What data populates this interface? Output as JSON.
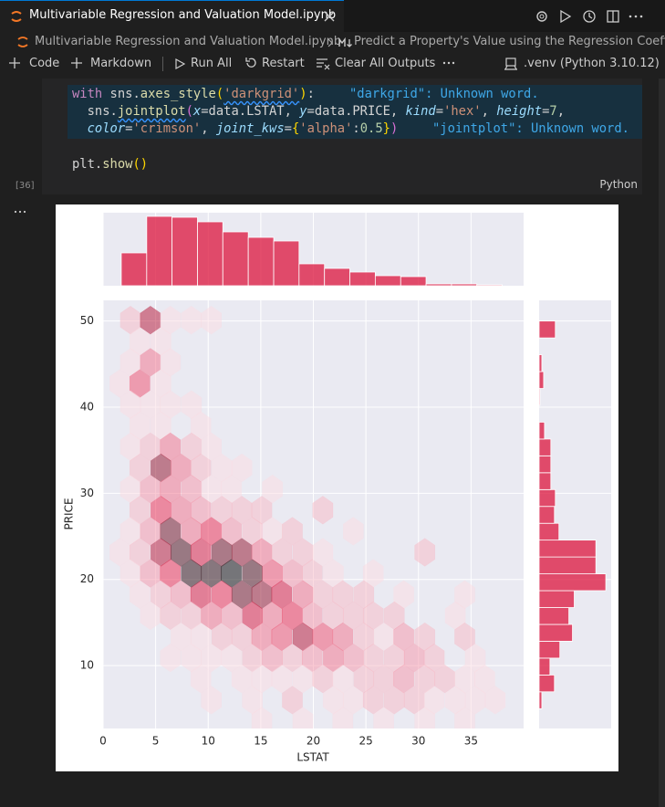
{
  "tab": {
    "title": "Multivariable Regression and Valuation Model.ipynb"
  },
  "breadcrumb": {
    "file": "Multivariable Regression and Valuation Model.ipynb",
    "section": "Predict a Property's Value using the Regression Coeffic"
  },
  "toolbar": {
    "items": [
      "Code",
      "Markdown",
      "Run All",
      "Restart",
      "Clear All Outputs"
    ],
    "kernel": ".venv (Python 3.10.12)"
  },
  "cell": {
    "lines": [
      [
        "with",
        " sns.",
        "axes_style",
        "(",
        "'darkgrid'",
        ")",
        ":"
      ],
      [
        "  sns.",
        "jointplot",
        "(",
        "x",
        "=data.LSTAT, ",
        "y",
        "=data.PRICE, ",
        "kind",
        "=",
        "'hex'",
        ", ",
        "height",
        "=",
        "7",
        ","
      ],
      [
        "  ",
        "color",
        "=",
        "'crimson'",
        ", ",
        "joint_kws",
        "=",
        "{",
        "'alpha'",
        ":",
        "0.5",
        "}",
        ")"
      ],
      [
        "plt.",
        "show",
        "(",
        ")"
      ]
    ],
    "hints": [
      "\"darkgrid\": Unknown word.",
      "\"jointplot\": Unknown word."
    ],
    "execution_count": "[36]",
    "language": "Python"
  },
  "chart_data": {
    "type": "hexbin",
    "xlabel": "LSTAT",
    "ylabel": "PRICE",
    "xlim": [
      0,
      40
    ],
    "ylim": [
      2.7,
      52.4
    ],
    "xticks": [
      0,
      5,
      10,
      15,
      20,
      25,
      30,
      35
    ],
    "yticks": [
      10,
      20,
      30,
      40,
      50
    ],
    "grid": true,
    "color": "#dc143c",
    "alpha": 0.5,
    "cells": [
      [
        2.6,
        50.1,
        2
      ],
      [
        4.5,
        50.1,
        8
      ],
      [
        6.4,
        50.1,
        1
      ],
      [
        8.4,
        50.1,
        1
      ],
      [
        10.3,
        50.1,
        1
      ],
      [
        3.5,
        47.65,
        1
      ],
      [
        5.5,
        47.65,
        1
      ],
      [
        2.6,
        45.2,
        1
      ],
      [
        4.5,
        45.2,
        4
      ],
      [
        6.4,
        45.2,
        1
      ],
      [
        1.6,
        42.75,
        1
      ],
      [
        3.5,
        42.75,
        5
      ],
      [
        5.5,
        42.75,
        1
      ],
      [
        2.6,
        40.3,
        1
      ],
      [
        4.5,
        40.3,
        1
      ],
      [
        6.4,
        40.3,
        1
      ],
      [
        8.4,
        40.3,
        1
      ],
      [
        3.5,
        37.85,
        1
      ],
      [
        5.5,
        37.85,
        1
      ],
      [
        9.3,
        37.85,
        1
      ],
      [
        2.6,
        35.4,
        1
      ],
      [
        4.5,
        35.4,
        2
      ],
      [
        6.4,
        35.4,
        4
      ],
      [
        8.4,
        35.4,
        2
      ],
      [
        10.3,
        35.4,
        1
      ],
      [
        3.5,
        32.95,
        2
      ],
      [
        5.5,
        32.95,
        9
      ],
      [
        7.4,
        32.95,
        4
      ],
      [
        9.3,
        32.95,
        2
      ],
      [
        11.3,
        32.95,
        1
      ],
      [
        13.2,
        32.95,
        1
      ],
      [
        2.6,
        30.5,
        1
      ],
      [
        4.5,
        30.5,
        3
      ],
      [
        6.4,
        30.5,
        4
      ],
      [
        8.4,
        30.5,
        3
      ],
      [
        10.3,
        30.5,
        1
      ],
      [
        12.2,
        30.5,
        1
      ],
      [
        16.1,
        30.5,
        1
      ],
      [
        3.5,
        28.05,
        2
      ],
      [
        5.5,
        28.05,
        6
      ],
      [
        7.4,
        28.05,
        4
      ],
      [
        9.3,
        28.05,
        3
      ],
      [
        11.3,
        28.05,
        2
      ],
      [
        13.2,
        28.05,
        2
      ],
      [
        15.1,
        28.05,
        2
      ],
      [
        20.9,
        28.05,
        2
      ],
      [
        2.6,
        25.6,
        1
      ],
      [
        4.5,
        25.6,
        3
      ],
      [
        6.4,
        25.6,
        10
      ],
      [
        8.4,
        25.6,
        4
      ],
      [
        10.3,
        25.6,
        6
      ],
      [
        12.2,
        25.6,
        3
      ],
      [
        14.2,
        25.6,
        2
      ],
      [
        16.1,
        25.6,
        1
      ],
      [
        18.0,
        25.6,
        2
      ],
      [
        23.8,
        25.6,
        1
      ],
      [
        1.6,
        23.15,
        1
      ],
      [
        3.5,
        23.15,
        2
      ],
      [
        5.5,
        23.15,
        8
      ],
      [
        7.4,
        23.15,
        11
      ],
      [
        9.3,
        23.15,
        7
      ],
      [
        11.3,
        23.15,
        10
      ],
      [
        13.2,
        23.15,
        9
      ],
      [
        15.1,
        23.15,
        4
      ],
      [
        17.0,
        23.15,
        2
      ],
      [
        19.0,
        23.15,
        2
      ],
      [
        20.9,
        23.15,
        1
      ],
      [
        30.6,
        23.15,
        2
      ],
      [
        2.6,
        20.7,
        1
      ],
      [
        4.5,
        20.7,
        3
      ],
      [
        6.4,
        20.7,
        6
      ],
      [
        8.4,
        20.7,
        12
      ],
      [
        10.3,
        20.7,
        12
      ],
      [
        12.2,
        20.7,
        13
      ],
      [
        14.2,
        20.7,
        11
      ],
      [
        16.1,
        20.7,
        5
      ],
      [
        18.0,
        20.7,
        3
      ],
      [
        19.9,
        20.7,
        2
      ],
      [
        21.9,
        20.7,
        1
      ],
      [
        25.7,
        20.7,
        1
      ],
      [
        3.5,
        18.25,
        1
      ],
      [
        5.5,
        18.25,
        2
      ],
      [
        7.4,
        18.25,
        3
      ],
      [
        9.3,
        18.25,
        7
      ],
      [
        11.3,
        18.25,
        6
      ],
      [
        13.2,
        18.25,
        10
      ],
      [
        15.1,
        18.25,
        9
      ],
      [
        17.0,
        18.25,
        7
      ],
      [
        19.0,
        18.25,
        4
      ],
      [
        20.9,
        18.25,
        2
      ],
      [
        22.8,
        18.25,
        2
      ],
      [
        24.8,
        18.25,
        2
      ],
      [
        28.6,
        18.25,
        1
      ],
      [
        34.4,
        18.25,
        1
      ],
      [
        4.5,
        15.8,
        1
      ],
      [
        6.4,
        15.8,
        2
      ],
      [
        8.4,
        15.8,
        2
      ],
      [
        10.3,
        15.8,
        4
      ],
      [
        12.2,
        15.8,
        3
      ],
      [
        14.2,
        15.8,
        7
      ],
      [
        16.1,
        15.8,
        4
      ],
      [
        18.0,
        15.8,
        6
      ],
      [
        19.9,
        15.8,
        3
      ],
      [
        21.9,
        15.8,
        2
      ],
      [
        23.8,
        15.8,
        2
      ],
      [
        25.7,
        15.8,
        2
      ],
      [
        27.7,
        15.8,
        2
      ],
      [
        33.5,
        15.8,
        1
      ],
      [
        7.4,
        13.35,
        1
      ],
      [
        9.3,
        13.35,
        1
      ],
      [
        11.3,
        13.35,
        2
      ],
      [
        13.2,
        13.35,
        2
      ],
      [
        15.1,
        13.35,
        4
      ],
      [
        17.0,
        13.35,
        5
      ],
      [
        19.0,
        13.35,
        8
      ],
      [
        20.9,
        13.35,
        5
      ],
      [
        22.8,
        13.35,
        4
      ],
      [
        24.8,
        13.35,
        2
      ],
      [
        26.7,
        13.35,
        1
      ],
      [
        28.6,
        13.35,
        3
      ],
      [
        30.6,
        13.35,
        2
      ],
      [
        34.4,
        13.35,
        2
      ],
      [
        6.4,
        10.9,
        1
      ],
      [
        8.4,
        10.9,
        1
      ],
      [
        10.3,
        10.9,
        1
      ],
      [
        12.2,
        10.9,
        1
      ],
      [
        14.2,
        10.9,
        2
      ],
      [
        16.1,
        10.9,
        3
      ],
      [
        18.0,
        10.9,
        2
      ],
      [
        19.9,
        10.9,
        3
      ],
      [
        21.9,
        10.9,
        4
      ],
      [
        23.8,
        10.9,
        3
      ],
      [
        25.7,
        10.9,
        2
      ],
      [
        27.7,
        10.9,
        2
      ],
      [
        29.6,
        10.9,
        3
      ],
      [
        31.5,
        10.9,
        2
      ],
      [
        35.4,
        10.9,
        1
      ],
      [
        9.3,
        8.45,
        1
      ],
      [
        13.2,
        8.45,
        1
      ],
      [
        15.1,
        8.45,
        1
      ],
      [
        17.0,
        8.45,
        1
      ],
      [
        19.0,
        8.45,
        1
      ],
      [
        20.9,
        8.45,
        2
      ],
      [
        22.8,
        8.45,
        1
      ],
      [
        24.8,
        8.45,
        2
      ],
      [
        26.7,
        8.45,
        2
      ],
      [
        28.6,
        8.45,
        3
      ],
      [
        30.6,
        8.45,
        2
      ],
      [
        32.5,
        8.45,
        2
      ],
      [
        34.4,
        8.45,
        1
      ],
      [
        36.3,
        8.45,
        1
      ],
      [
        10.3,
        6.0,
        1
      ],
      [
        14.2,
        6.0,
        1
      ],
      [
        18.0,
        6.0,
        2
      ],
      [
        21.9,
        6.0,
        1
      ],
      [
        23.8,
        6.0,
        1
      ],
      [
        25.7,
        6.0,
        2
      ],
      [
        27.7,
        6.0,
        2
      ],
      [
        29.6,
        6.0,
        2
      ],
      [
        31.5,
        6.0,
        1
      ],
      [
        33.5,
        6.0,
        1
      ],
      [
        35.4,
        6.0,
        1
      ],
      [
        37.3,
        6.0,
        1
      ],
      [
        15.1,
        3.55,
        1
      ],
      [
        19.0,
        3.55,
        1
      ],
      [
        22.8,
        3.55,
        1
      ],
      [
        26.7,
        3.55,
        1
      ],
      [
        30.6,
        3.55,
        1
      ],
      [
        34.4,
        3.55,
        1
      ]
    ],
    "x_marginal": {
      "bins": [
        1.73,
        4.15,
        6.56,
        8.98,
        11.39,
        13.81,
        16.23,
        18.64,
        21.06,
        23.47,
        25.89,
        28.31,
        30.72,
        33.14,
        35.55,
        37.97
      ],
      "counts": [
        36,
        76,
        75,
        70,
        59,
        53,
        49,
        24,
        19,
        15,
        11,
        10,
        2,
        2,
        1
      ],
      "ylim": [
        0,
        80
      ]
    },
    "y_marginal": {
      "bins": [
        5,
        6.96,
        8.91,
        10.87,
        12.83,
        14.78,
        16.74,
        18.7,
        20.65,
        22.61,
        24.57,
        26.52,
        28.48,
        30.43,
        32.39,
        34.35,
        36.3,
        38.26,
        40.22,
        42.17,
        44.13,
        46.09,
        48.04,
        50
      ],
      "counts": [
        3,
        17,
        12,
        23,
        37,
        33,
        39,
        74,
        63,
        63,
        22,
        17,
        18,
        13,
        13,
        13,
        6,
        0,
        1,
        5,
        3,
        0,
        18
      ],
      "xlim": [
        0,
        80
      ]
    }
  }
}
